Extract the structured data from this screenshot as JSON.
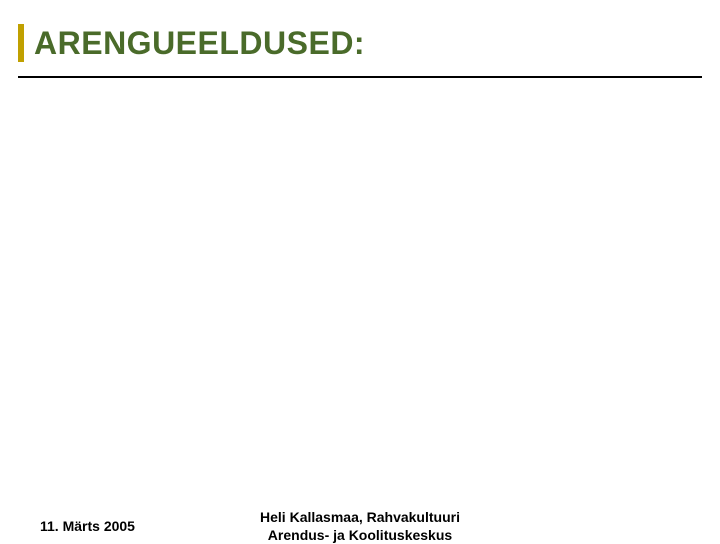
{
  "slide": {
    "title": "ARENGUEELDUSED:",
    "title_color": "#4a6b2a",
    "title_fontsize": 32,
    "accent_color": "#c0a000",
    "divider_color": "#000000",
    "background_color": "#ffffff"
  },
  "footer": {
    "date": "11. Märts 2005",
    "author_line1": "Heli Kallasmaa, Rahvakultuuri",
    "author_line2": "Arendus- ja Koolituskeskus",
    "font_color": "#000000",
    "fontsize": 14
  }
}
